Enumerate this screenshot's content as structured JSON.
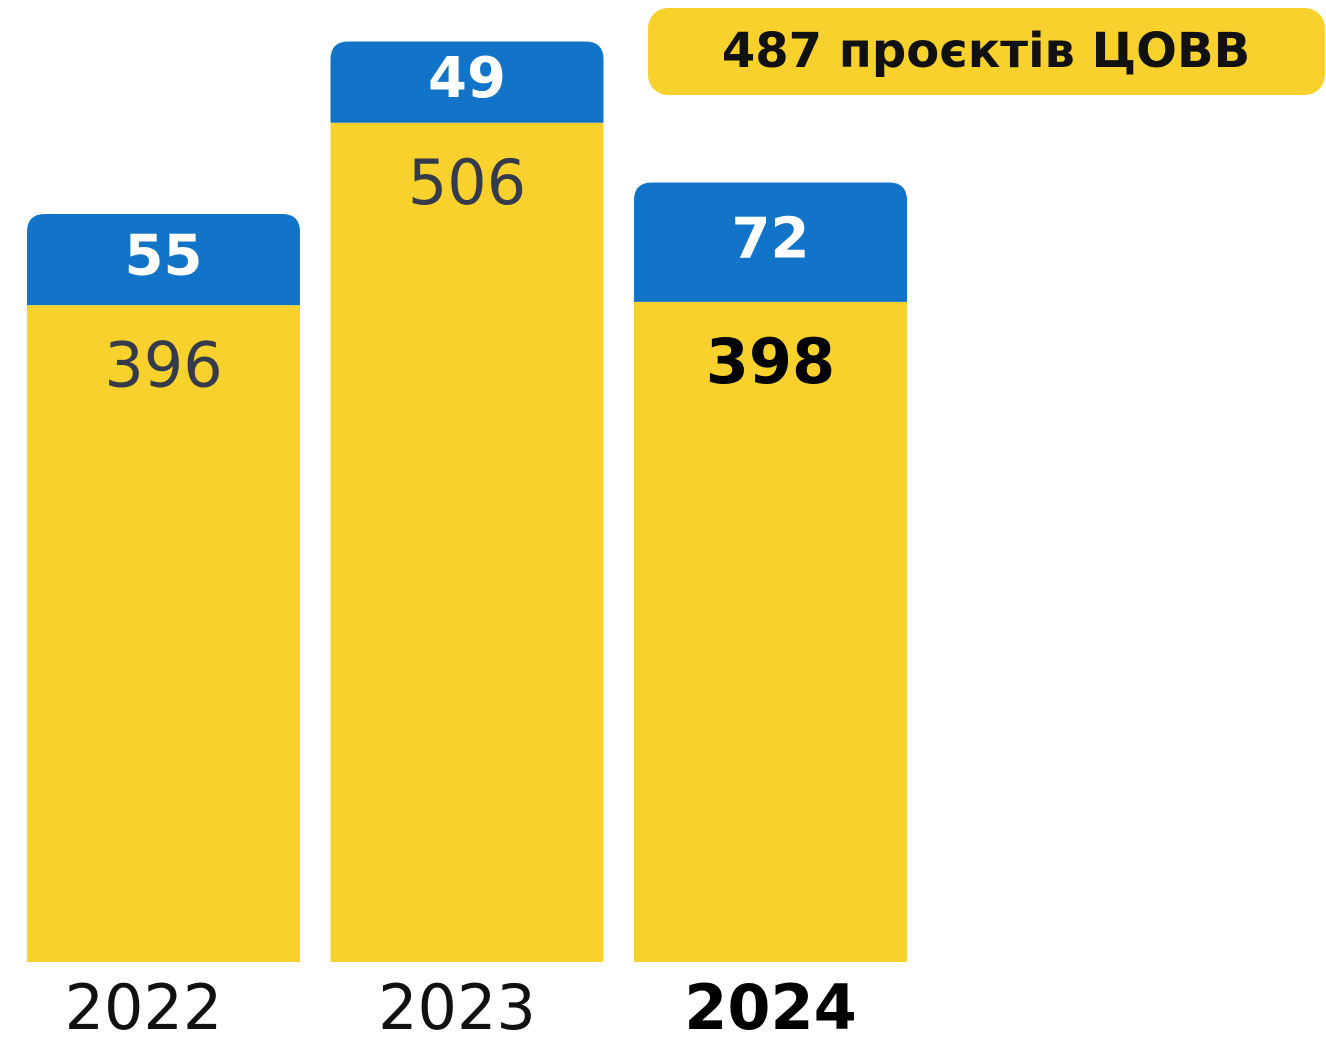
{
  "chart_data": {
    "type": "stacked_bar",
    "annotation": "487 проєктів ЦОВВ",
    "categories": [
      "2022",
      "2023",
      "2024"
    ],
    "series": [
      {
        "color": "#f9d12c",
        "values": [
          396,
          506,
          398
        ]
      },
      {
        "color": "#1174c9",
        "values": [
          55,
          49,
          72
        ]
      }
    ],
    "ylim": [
      0,
      580
    ]
  }
}
